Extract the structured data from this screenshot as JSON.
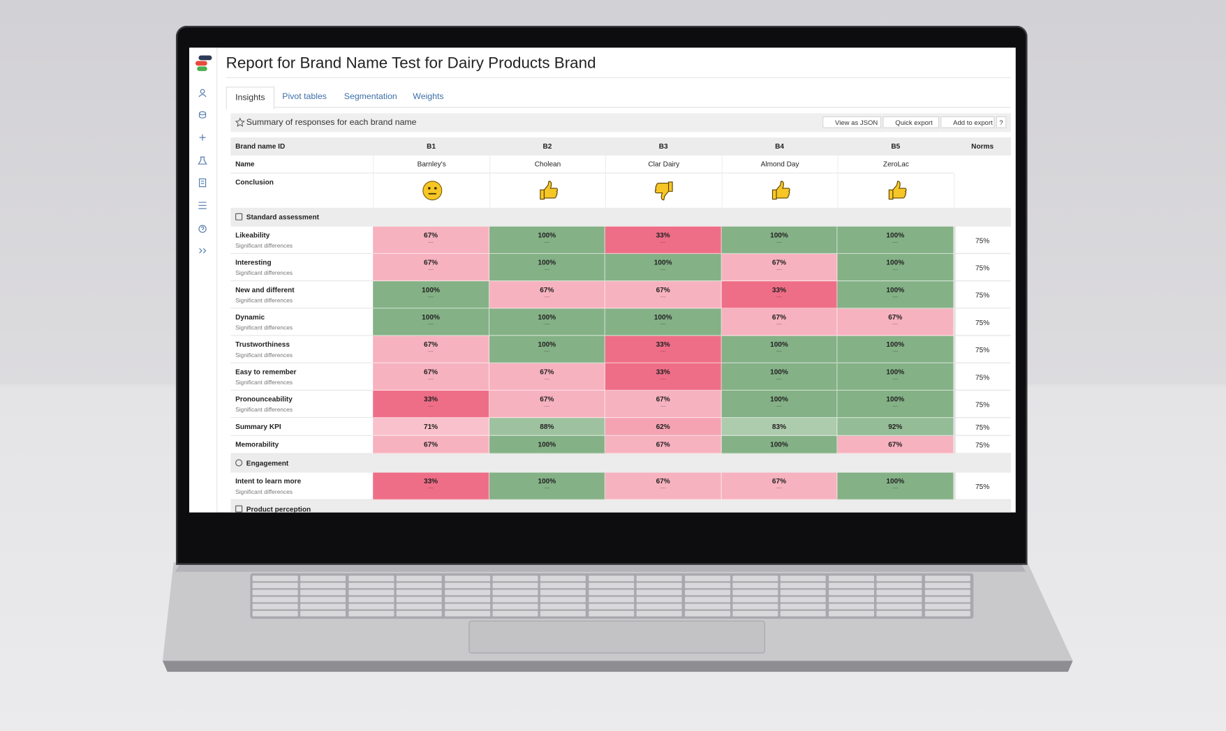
{
  "header": {
    "title": "Report for Brand Name Test for Dairy Products Brand"
  },
  "tabs": [
    "Insights",
    "Pivot tables",
    "Segmentation",
    "Weights"
  ],
  "panel": {
    "title": "Summary of responses for each brand name",
    "actions": [
      "View as JSON",
      "Quick export",
      "Add to export"
    ]
  },
  "table": {
    "id_label": "Brand name ID",
    "ids": [
      "B1",
      "B2",
      "B3",
      "B4",
      "B5"
    ],
    "norms_label": "Norms",
    "name_label": "Name",
    "names": [
      "Barnley's",
      "Cholean",
      "Clar Dairy",
      "Almond Day",
      "ZeroLac"
    ],
    "conclusion_label": "Conclusion",
    "sig_label": "Significant differences",
    "sig_mark": "—",
    "sections": [
      {
        "title": "Standard assessment",
        "rows": [
          {
            "label": "Likeability",
            "sig": true,
            "values": [
              "67%",
              "100%",
              "33%",
              "100%",
              "100%"
            ],
            "norm": "75%"
          },
          {
            "label": "Interesting",
            "sig": true,
            "values": [
              "67%",
              "100%",
              "100%",
              "67%",
              "100%"
            ],
            "norm": "75%"
          },
          {
            "label": "New and different",
            "sig": true,
            "values": [
              "100%",
              "67%",
              "67%",
              "33%",
              "100%"
            ],
            "norm": "75%"
          },
          {
            "label": "Dynamic",
            "sig": true,
            "values": [
              "100%",
              "100%",
              "100%",
              "67%",
              "67%"
            ],
            "norm": "75%"
          },
          {
            "label": "Trustworthiness",
            "sig": true,
            "values": [
              "67%",
              "100%",
              "33%",
              "100%",
              "100%"
            ],
            "norm": "75%"
          },
          {
            "label": "Easy to remember",
            "sig": true,
            "values": [
              "67%",
              "67%",
              "33%",
              "100%",
              "100%"
            ],
            "norm": "75%"
          },
          {
            "label": "Pronounceability",
            "sig": true,
            "values": [
              "33%",
              "67%",
              "67%",
              "100%",
              "100%"
            ],
            "norm": "75%"
          },
          {
            "label": "Summary KPI",
            "sig": false,
            "values": [
              "71%",
              "88%",
              "62%",
              "83%",
              "92%"
            ],
            "norm": "75%"
          },
          {
            "label": "Memorability",
            "sig": false,
            "values": [
              "67%",
              "100%",
              "67%",
              "100%",
              "67%"
            ],
            "norm": "75%"
          }
        ]
      },
      {
        "title": "Engagement",
        "rows": [
          {
            "label": "Intent to learn more",
            "sig": true,
            "values": [
              "33%",
              "100%",
              "67%",
              "67%",
              "100%"
            ],
            "norm": "75%"
          }
        ]
      },
      {
        "title": "Product perception",
        "rows": []
      }
    ]
  }
}
